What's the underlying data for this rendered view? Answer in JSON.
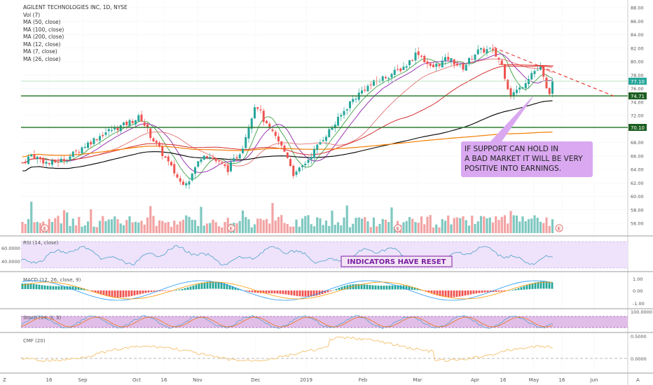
{
  "header": {
    "title": "AGILENT TECHNOLOGIES INC, 1D, NYSE",
    "indicators": [
      "Vol (7)",
      "MA (50, close)",
      "MA (100, close)",
      "MA (200, close)",
      "MA (12, close)",
      "MA (7, close)",
      "MA (26, close)"
    ]
  },
  "colors": {
    "up": "#26a69a",
    "down": "#ef5350",
    "up_vol": "#7fc8c0",
    "down_vol": "#f3a3a3",
    "ma50": "#d32f2f",
    "ma100": "#000000",
    "ma200": "#f57c00",
    "ma12": "#8e24aa",
    "ma7": "#43a047",
    "ma26": "#e57373",
    "support": "#2e7d32",
    "trend": "#e53935",
    "callout_bg": "#d9a8f0",
    "rsi_band": "#efe2fb",
    "rsi_line": "#4ba3c7",
    "macd_line": "#2196f3",
    "signal_line": "#ff9800",
    "cmf_line": "#f5c16c"
  },
  "annotations": {
    "callout": [
      "IF SUPPORT CAN HOLD IN",
      "A BAD MARKET IT WILL BE VERY",
      "POSITIVE INTO EARNINGS."
    ],
    "indicators_box": "INDICATORS HAVE RESET",
    "earnings_marker": "E"
  },
  "price_labels": {
    "last": "77.10",
    "support_1": "74.71",
    "support_2": "70.10"
  },
  "panes": {
    "rsi": {
      "label": "RSI (14, close)",
      "ticks": [
        "60.0000",
        "40.0000"
      ]
    },
    "macd": {
      "label": "MACD (12, 26, close, 9)",
      "ticks": [
        "1.00",
        "0.00",
        "-1.00"
      ]
    },
    "stoch": {
      "label": "Stoch (14, 3, 3)",
      "ticks": [
        "100.0000"
      ]
    },
    "cmf": {
      "label": "CMF (20)",
      "ticks": [
        "0.5000",
        "0.0000"
      ]
    }
  },
  "axis": {
    "y_ticks": [
      "88.00",
      "86.00",
      "84.00",
      "82.00",
      "80.00",
      "78.00",
      "76.00",
      "74.00",
      "72.00",
      "70.00",
      "68.00",
      "66.00",
      "64.00",
      "62.00",
      "60.00",
      "58.00",
      "56.00"
    ],
    "x_ticks": [
      "16",
      "Sep",
      "Oct",
      "16",
      "Nov",
      "Dec",
      "2019",
      "Feb",
      "Mar",
      "Apr",
      "16",
      "May",
      "16",
      "Jun"
    ],
    "corner_left": "Z",
    "corner_right": "A"
  },
  "chart_data": {
    "type": "candlestick",
    "title": "AGILENT TECHNOLOGIES INC, 1D, NYSE",
    "ylim": [
      55,
      89
    ],
    "support_levels": [
      74.71,
      70.1
    ],
    "trendline": {
      "from_price": 82.3,
      "to_price": 74.8
    },
    "key_points": [
      {
        "x": "Aug-2018 (start)",
        "close": 65.0
      },
      {
        "x": "late Sep-2018",
        "close": 71.5
      },
      {
        "x": "late Oct-2018",
        "close": 61.5
      },
      {
        "x": "early Dec-2018",
        "close": 74.0
      },
      {
        "x": "late Dec-2018",
        "close": 62.5
      },
      {
        "x": "early Mar-2019",
        "close": 81.5
      },
      {
        "x": "early Apr-2019",
        "close": 82.0
      },
      {
        "x": "late Apr-2019",
        "close": 74.5
      },
      {
        "x": "early May-2019",
        "close": 77.1
      }
    ],
    "moving_averages": [
      "MA 50",
      "MA 100",
      "MA 200",
      "MA 12",
      "MA 7",
      "MA 26"
    ]
  }
}
